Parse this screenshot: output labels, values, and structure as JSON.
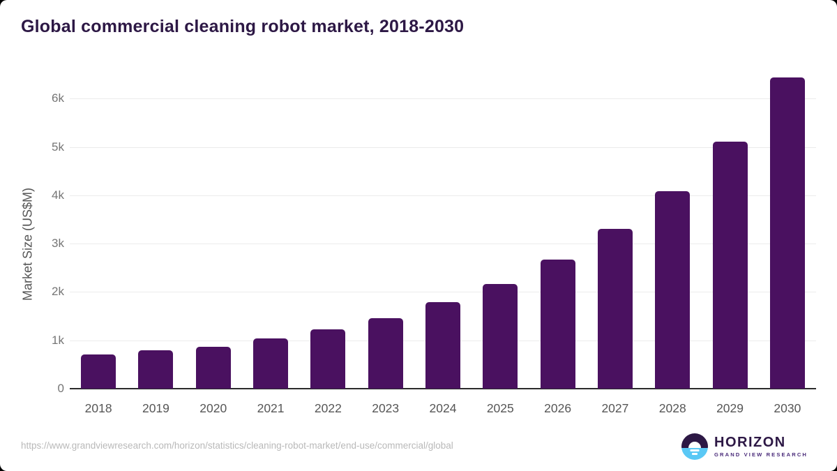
{
  "header": {
    "title": "Global commercial cleaning robot market, 2018-2030",
    "title_color": "#2d1845"
  },
  "chart_data": {
    "type": "bar",
    "title": "Global commercial cleaning robot market, 2018-2030",
    "categories": [
      "2018",
      "2019",
      "2020",
      "2021",
      "2022",
      "2023",
      "2024",
      "2025",
      "2026",
      "2027",
      "2028",
      "2029",
      "2030"
    ],
    "values": [
      710,
      790,
      870,
      1045,
      1230,
      1460,
      1785,
      2160,
      2670,
      3310,
      4080,
      5110,
      6440
    ],
    "xlabel": "",
    "ylabel": "Market Size (US$M)",
    "ylim": [
      0,
      6500
    ],
    "yticks": [
      {
        "value": 0,
        "label": "0"
      },
      {
        "value": 1000,
        "label": "1k"
      },
      {
        "value": 2000,
        "label": "2k"
      },
      {
        "value": 3000,
        "label": "3k"
      },
      {
        "value": 4000,
        "label": "4k"
      },
      {
        "value": 5000,
        "label": "5k"
      },
      {
        "value": 6000,
        "label": "6k"
      }
    ],
    "grid": "horizontal",
    "legend_position": "none",
    "bar_color": "#4a1160"
  },
  "footer": {
    "source_url": "https://www.grandviewresearch.com/horizon/statistics/cleaning-robot-market/end-use/commercial/global",
    "logo": {
      "name": "HORIZON",
      "subtitle": "GRAND VIEW RESEARCH",
      "icon": "horizon-sunset-circle-icon",
      "icon_top_color": "#2d1845",
      "icon_bottom_color": "#5ac8f5"
    }
  }
}
